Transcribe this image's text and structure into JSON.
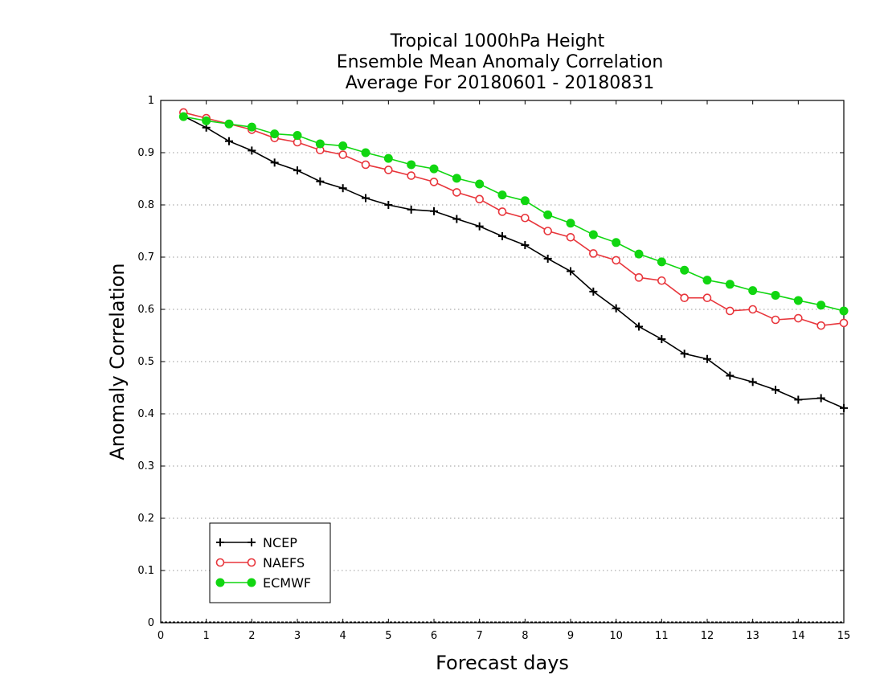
{
  "chart_data": {
    "type": "line",
    "title": [
      "Tropical 1000hPa Height",
      "Ensemble Mean Anomaly Correlation",
      "Average For 20180601 - 20180831"
    ],
    "xlabel": "Forecast days",
    "ylabel": "Anomaly Correlation",
    "xlim": [
      0,
      15
    ],
    "ylim": [
      0,
      1
    ],
    "xticks": [
      "0",
      "1",
      "2",
      "3",
      "4",
      "5",
      "6",
      "7",
      "8",
      "9",
      "10",
      "11",
      "12",
      "13",
      "14",
      "15"
    ],
    "yticks": [
      "0",
      "0.1",
      "0.2",
      "0.3",
      "0.4",
      "0.5",
      "0.6",
      "0.7",
      "0.8",
      "0.9",
      "1"
    ],
    "grid": true,
    "legend_position": "bottom-left",
    "x": [
      0.5,
      1,
      1.5,
      2,
      2.5,
      3,
      3.5,
      4,
      4.5,
      5,
      5.5,
      6,
      6.5,
      7,
      7.5,
      8,
      8.5,
      9,
      9.5,
      10,
      10.5,
      11,
      11.5,
      12,
      12.5,
      13,
      13.5,
      14,
      14.5,
      15
    ],
    "series": [
      {
        "name": "NCEP",
        "color": "#000000",
        "marker": "plus",
        "values": [
          0.97,
          0.948,
          0.922,
          0.904,
          0.881,
          0.866,
          0.845,
          0.832,
          0.813,
          0.8,
          0.791,
          0.788,
          0.773,
          0.759,
          0.74,
          0.723,
          0.697,
          0.673,
          0.634,
          0.602,
          0.567,
          0.543,
          0.515,
          0.505,
          0.473,
          0.461,
          0.446,
          0.427,
          0.43,
          0.411
        ]
      },
      {
        "name": "NAEFS",
        "color": "#e8363c",
        "marker": "open-circle",
        "values": [
          0.977,
          0.966,
          0.955,
          0.944,
          0.928,
          0.92,
          0.905,
          0.896,
          0.877,
          0.867,
          0.856,
          0.844,
          0.824,
          0.811,
          0.787,
          0.775,
          0.75,
          0.738,
          0.707,
          0.694,
          0.661,
          0.655,
          0.622,
          0.622,
          0.597,
          0.6,
          0.58,
          0.583,
          0.569,
          0.574
        ]
      },
      {
        "name": "ECMWF",
        "color": "#11d611",
        "marker": "filled-circle",
        "values": [
          0.969,
          0.961,
          0.955,
          0.949,
          0.936,
          0.933,
          0.917,
          0.913,
          0.9,
          0.889,
          0.877,
          0.869,
          0.851,
          0.84,
          0.819,
          0.808,
          0.781,
          0.765,
          0.743,
          0.728,
          0.706,
          0.691,
          0.675,
          0.656,
          0.648,
          0.636,
          0.627,
          0.617,
          0.608,
          0.597
        ]
      }
    ]
  }
}
